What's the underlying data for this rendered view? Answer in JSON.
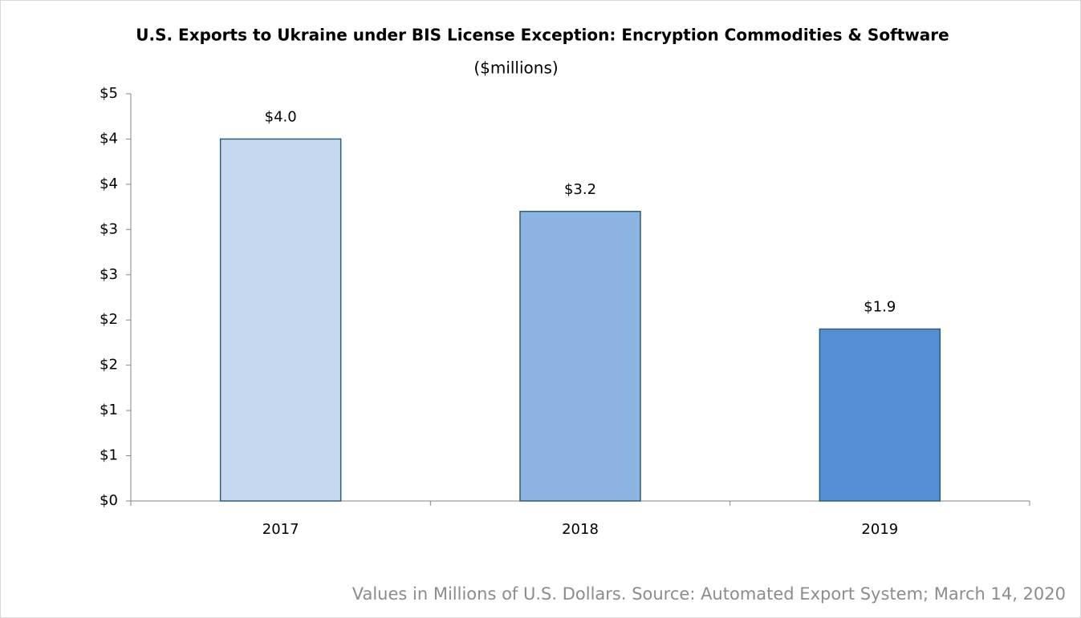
{
  "chart_data": {
    "type": "bar",
    "title": "U.S. Exports to Ukraine under BIS License Exception: Encryption Commodities & Software",
    "subtitle": "($millions)",
    "footnote": "Values in Millions of U.S. Dollars. Source: Automated Export System; March 14, 2020",
    "categories": [
      "2017",
      "2018",
      "2019"
    ],
    "values": [
      4.0,
      3.2,
      1.9
    ],
    "value_labels": [
      "$4.0",
      "$3.2",
      "$1.9"
    ],
    "colors": [
      "#c6d9f1",
      "#8eb4e3",
      "#558ed5"
    ],
    "edge_color": "#2e5f73",
    "ylim": [
      0,
      4.5
    ],
    "yticks": [
      {
        "value": 0,
        "label": "$0"
      },
      {
        "value": 0.5,
        "label": "$1"
      },
      {
        "value": 1,
        "label": "$1"
      },
      {
        "value": 1.5,
        "label": "$2"
      },
      {
        "value": 2,
        "label": "$2"
      },
      {
        "value": 2.5,
        "label": "$3"
      },
      {
        "value": 3,
        "label": "$3"
      },
      {
        "value": 3.5,
        "label": "$4"
      },
      {
        "value": 4,
        "label": "$4"
      },
      {
        "value": 4.5,
        "label": "$5"
      }
    ],
    "grid": false
  }
}
